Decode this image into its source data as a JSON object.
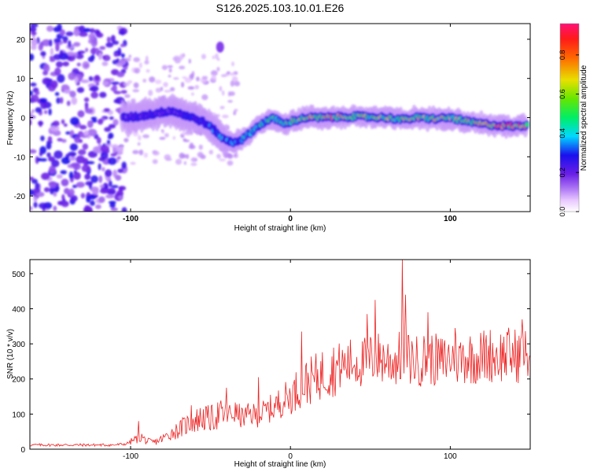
{
  "title": "S126.2025.103.10.01.E26",
  "chart_data": [
    {
      "type": "heatmap",
      "xlabel": "Height of straight line (km)",
      "ylabel": "Frequency (Hz)",
      "xlim": [
        -163,
        150
      ],
      "ylim": [
        -24,
        24
      ],
      "xticks": [
        -100,
        0,
        100
      ],
      "yticks": [
        -20,
        -10,
        0,
        10,
        20
      ],
      "colorbar": {
        "label": "Normalized spectral amplitude",
        "ticks": [
          "0.0",
          "0.2",
          "0.4",
          "0.6",
          "0.8"
        ],
        "range": [
          0,
          0.96
        ]
      },
      "ridge": {
        "x": [
          -105,
          -95,
          -85,
          -75,
          -65,
          -55,
          -48,
          -42,
          -36,
          -30,
          -24,
          -18,
          -12,
          -8,
          -4,
          0,
          10,
          20,
          40,
          60,
          70,
          80,
          90,
          100,
          110,
          120,
          130,
          140,
          148
        ],
        "frequency": [
          0,
          0.3,
          1,
          1.8,
          0.5,
          -1,
          -3,
          -5.5,
          -6.3,
          -5.5,
          -3.5,
          -1.5,
          -0.3,
          -0.5,
          -1.8,
          -1,
          0,
          0,
          0.3,
          0,
          -0.5,
          0,
          -0.3,
          0,
          -1,
          -1.6,
          -2,
          -2.2,
          -2
        ],
        "amplitude": [
          0.25,
          0.28,
          0.3,
          0.28,
          0.32,
          0.35,
          0.42,
          0.45,
          0.4,
          0.45,
          0.5,
          0.55,
          0.6,
          0.65,
          0.7,
          0.62,
          0.8,
          0.85,
          0.75,
          0.7,
          0.72,
          0.8,
          0.78,
          0.72,
          0.8,
          0.85,
          0.9,
          0.92,
          0.85
        ]
      }
    },
    {
      "type": "line",
      "xlabel": "Height of straight line (km)",
      "ylabel": "SNR (10 * v/v)",
      "xlim": [
        -163,
        150
      ],
      "ylim": [
        0,
        540
      ],
      "xticks": [
        -100,
        0,
        100
      ],
      "yticks": [
        0,
        100,
        200,
        300,
        400,
        500
      ],
      "color": "#ee2222",
      "series": [
        {
          "x": [
            -163,
            -150,
            -140,
            -130,
            -120,
            -110,
            -103,
            -97,
            -93,
            -90,
            -85,
            -80,
            -75,
            -70,
            -65,
            -60,
            -55,
            -50,
            -45,
            -40,
            -35,
            -30,
            -25,
            -20,
            -15,
            -10,
            -5,
            0,
            5,
            10,
            15,
            20,
            25,
            30,
            35,
            40,
            45,
            50,
            55,
            60,
            65,
            70,
            75,
            80,
            85,
            90,
            95,
            100,
            105,
            110,
            115,
            120,
            125,
            130,
            135,
            140,
            145,
            150
          ],
          "y": [
            12,
            12,
            12,
            12,
            12,
            12,
            15,
            28,
            35,
            22,
            20,
            30,
            45,
            55,
            70,
            80,
            90,
            85,
            100,
            95,
            105,
            90,
            100,
            95,
            110,
            120,
            140,
            150,
            175,
            190,
            200,
            215,
            225,
            235,
            240,
            250,
            245,
            255,
            260,
            255,
            250,
            265,
            255,
            250,
            260,
            255,
            250,
            260,
            255,
            265,
            260,
            265,
            270,
            265,
            270,
            268,
            265,
            270
          ]
        }
      ],
      "spikes": [
        {
          "x": -95,
          "y": 80
        },
        {
          "x": -62,
          "y": 125
        },
        {
          "x": -40,
          "y": 175
        },
        {
          "x": -20,
          "y": 205
        },
        {
          "x": 7,
          "y": 335
        },
        {
          "x": 48,
          "y": 385
        },
        {
          "x": 53,
          "y": 425
        },
        {
          "x": 70,
          "y": 540
        },
        {
          "x": 72,
          "y": 440
        },
        {
          "x": 86,
          "y": 390
        },
        {
          "x": 103,
          "y": 345
        },
        {
          "x": 145,
          "y": 370
        }
      ]
    }
  ]
}
